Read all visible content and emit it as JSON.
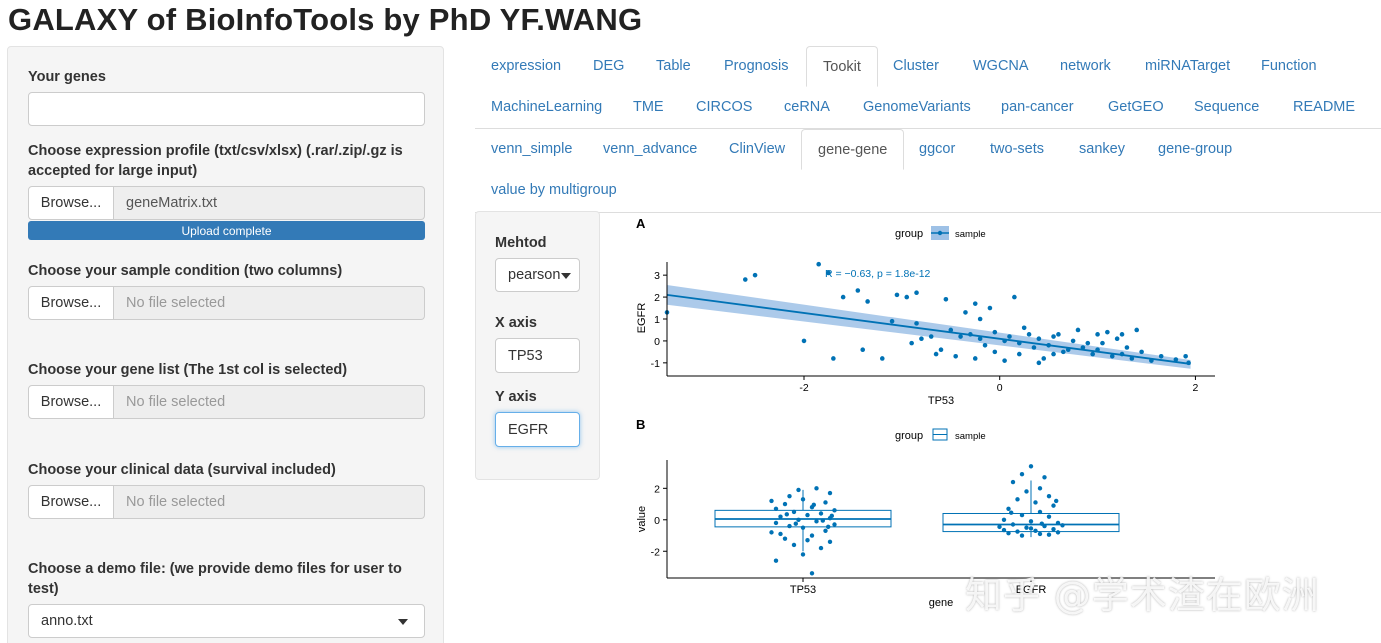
{
  "app_title": "GALAXY of BioInfoTools by PhD YF.WANG",
  "sidebar": {
    "genes_label": "Your genes",
    "genes_value": "",
    "expr_label": "Choose expression profile (txt/csv/xlsx) (.rar/.zip/.gz is accepted for large input)",
    "expr_file": "geneMatrix.txt",
    "upload_status": "Upload complete",
    "sample_label": "Choose your sample condition (two columns)",
    "genelist_label": "Choose your gene list (The 1st col is selected)",
    "clinical_label": "Choose your clinical data (survival included)",
    "browse_label": "Browse...",
    "no_file": "No file selected",
    "demo_label": "Choose a demo file: (we provide demo files for user to test)",
    "demo_value": "anno.txt"
  },
  "tabs_top": [
    "expression",
    "DEG",
    "Table",
    "Prognosis",
    "Tookit",
    "Cluster",
    "WGCNA",
    "network",
    "miRNATarget",
    "Function",
    "MachineLearning",
    "TME",
    "CIRCOS",
    "ceRNA",
    "GenomeVariants",
    "pan-cancer",
    "GetGEO",
    "Sequence",
    "README"
  ],
  "tabs_sub": [
    "venn_simple",
    "venn_advance",
    "ClinView",
    "gene-gene",
    "ggcor",
    "two-sets",
    "sankey",
    "gene-group",
    "value by multigroup"
  ],
  "panel": {
    "method_label": "Mehtod",
    "method_value": "pearson",
    "x_label": "X axis",
    "x_value": "TP53",
    "y_label": "Y axis",
    "y_value": "EGFR"
  },
  "watermark": "知乎 @学术渣在欧洲",
  "colors": {
    "accent": "#337ab7",
    "plot_blue": "#0072B5",
    "band": "#9EC1E6"
  },
  "chart_data": [
    {
      "type": "scatter",
      "panel_tag": "A",
      "legend_title": "group",
      "legend_entry": "sample",
      "legend_position": "top",
      "annotation": "R = −0.63, p = 1.8e-12",
      "xlabel": "TP53",
      "ylabel": "EGFR",
      "xlim": [
        -3.4,
        2.2
      ],
      "ylim": [
        -1.6,
        3.6
      ],
      "xticks": [
        -2,
        0,
        2
      ],
      "yticks": [
        -1,
        0,
        1,
        2,
        3
      ],
      "regression": {
        "x": [
          -3.4,
          1.95
        ],
        "y": [
          2.1,
          -1.05
        ]
      },
      "points": [
        [
          -3.4,
          1.3
        ],
        [
          -2.6,
          2.8
        ],
        [
          -2.5,
          3.0
        ],
        [
          -1.85,
          3.5
        ],
        [
          -1.75,
          3.1
        ],
        [
          -1.45,
          2.3
        ],
        [
          -1.6,
          2.0
        ],
        [
          -1.35,
          1.8
        ],
        [
          -2.0,
          0.0
        ],
        [
          -1.7,
          -0.8
        ],
        [
          -1.4,
          -0.4
        ],
        [
          -1.05,
          2.1
        ],
        [
          -0.95,
          2.0
        ],
        [
          -0.85,
          2.2
        ],
        [
          -0.55,
          1.9
        ],
        [
          -0.35,
          1.3
        ],
        [
          -0.25,
          1.7
        ],
        [
          -0.2,
          1.0
        ],
        [
          -0.1,
          1.5
        ],
        [
          0.15,
          2.0
        ],
        [
          -1.1,
          0.9
        ],
        [
          -0.85,
          0.8
        ],
        [
          -0.7,
          0.2
        ],
        [
          -0.5,
          0.5
        ],
        [
          -0.4,
          0.2
        ],
        [
          -0.3,
          0.3
        ],
        [
          -0.2,
          0.1
        ],
        [
          -0.15,
          -0.2
        ],
        [
          -0.05,
          0.4
        ],
        [
          0.05,
          0.0
        ],
        [
          0.1,
          0.2
        ],
        [
          0.2,
          -0.1
        ],
        [
          0.3,
          0.3
        ],
        [
          0.4,
          0.1
        ],
        [
          0.5,
          -0.2
        ],
        [
          0.55,
          0.2
        ],
        [
          0.65,
          -0.5
        ],
        [
          0.75,
          0.0
        ],
        [
          0.85,
          -0.3
        ],
        [
          0.95,
          -0.6
        ],
        [
          1.05,
          -0.1
        ],
        [
          1.15,
          -0.7
        ],
        [
          1.25,
          0.3
        ],
        [
          1.35,
          -0.8
        ],
        [
          1.45,
          -0.5
        ],
        [
          1.55,
          -0.9
        ],
        [
          1.65,
          -0.7
        ],
        [
          1.8,
          -0.85
        ],
        [
          1.9,
          -0.7
        ],
        [
          1.93,
          -1.0
        ],
        [
          -1.2,
          -0.8
        ],
        [
          -0.9,
          -0.1
        ],
        [
          -0.6,
          -0.4
        ],
        [
          -0.45,
          -0.7
        ],
        [
          -0.25,
          -0.8
        ],
        [
          -0.05,
          -0.5
        ],
        [
          0.05,
          -0.9
        ],
        [
          0.2,
          -0.6
        ],
        [
          0.35,
          -0.3
        ],
        [
          0.45,
          -0.8
        ],
        [
          0.6,
          0.3
        ],
        [
          0.7,
          -0.4
        ],
        [
          0.8,
          0.5
        ],
        [
          0.9,
          -0.1
        ],
        [
          1.0,
          -0.4
        ],
        [
          1.1,
          0.4
        ],
        [
          1.2,
          0.1
        ],
        [
          1.3,
          -0.3
        ],
        [
          -0.8,
          0.1
        ],
        [
          -0.65,
          -0.6
        ],
        [
          0.25,
          0.6
        ],
        [
          0.4,
          -1.0
        ],
        [
          0.55,
          -0.6
        ],
        [
          1.0,
          0.3
        ],
        [
          1.25,
          -0.6
        ],
        [
          1.4,
          0.5
        ]
      ]
    },
    {
      "type": "box",
      "panel_tag": "B",
      "legend_title": "group",
      "legend_entry": "sample",
      "legend_position": "top",
      "xlabel": "gene",
      "ylabel": "value",
      "categories": [
        "TP53",
        "EGFR"
      ],
      "ylim": [
        -3.7,
        3.8
      ],
      "yticks": [
        -2,
        0,
        2
      ],
      "boxes": [
        {
          "q1": -0.45,
          "median": 0.05,
          "q3": 0.6,
          "min": -2.0,
          "max": 1.9
        },
        {
          "q1": -0.75,
          "median": -0.3,
          "q3": 0.4,
          "min": -1.1,
          "max": 2.5
        }
      ],
      "points": [
        [
          [
            0.1,
            -3.4
          ],
          [
            -0.3,
            -2.6
          ],
          [
            0.0,
            -2.2
          ],
          [
            0.2,
            -1.8
          ],
          [
            -0.1,
            -1.6
          ],
          [
            0.3,
            -1.4
          ],
          [
            -0.2,
            -1.2
          ],
          [
            0.1,
            -1.0
          ],
          [
            -0.35,
            -0.8
          ],
          [
            0.25,
            -0.7
          ],
          [
            0.0,
            -0.5
          ],
          [
            -0.15,
            -0.4
          ],
          [
            0.35,
            -0.3
          ],
          [
            -0.3,
            -0.2
          ],
          [
            0.15,
            -0.1
          ],
          [
            -0.05,
            0.0
          ],
          [
            0.3,
            0.1
          ],
          [
            -0.25,
            0.2
          ],
          [
            0.05,
            0.3
          ],
          [
            0.2,
            0.4
          ],
          [
            -0.1,
            0.5
          ],
          [
            0.35,
            0.6
          ],
          [
            -0.3,
            0.7
          ],
          [
            0.1,
            0.8
          ],
          [
            -0.2,
            1.0
          ],
          [
            0.25,
            1.1
          ],
          [
            0.0,
            1.3
          ],
          [
            -0.15,
            1.5
          ],
          [
            0.3,
            1.7
          ],
          [
            -0.05,
            1.9
          ],
          [
            0.15,
            2.0
          ],
          [
            -0.25,
            -0.9
          ],
          [
            0.05,
            -1.3
          ],
          [
            0.28,
            -0.45
          ],
          [
            -0.18,
            0.35
          ],
          [
            0.12,
            0.95
          ],
          [
            -0.35,
            1.2
          ],
          [
            0.22,
            -0.05
          ],
          [
            -0.08,
            -0.25
          ],
          [
            0.32,
            0.25
          ]
        ],
        [
          [
            0.0,
            3.4
          ],
          [
            -0.1,
            2.9
          ],
          [
            0.15,
            2.7
          ],
          [
            -0.2,
            2.4
          ],
          [
            0.1,
            2.0
          ],
          [
            -0.05,
            1.8
          ],
          [
            0.2,
            1.5
          ],
          [
            -0.15,
            1.3
          ],
          [
            0.05,
            1.1
          ],
          [
            0.25,
            0.9
          ],
          [
            -0.25,
            0.7
          ],
          [
            0.1,
            0.5
          ],
          [
            -0.1,
            0.3
          ],
          [
            0.2,
            0.2
          ],
          [
            -0.3,
            0.0
          ],
          [
            0.0,
            -0.1
          ],
          [
            0.3,
            -0.2
          ],
          [
            -0.2,
            -0.3
          ],
          [
            0.15,
            -0.4
          ],
          [
            -0.05,
            -0.5
          ],
          [
            0.25,
            -0.6
          ],
          [
            -0.3,
            -0.65
          ],
          [
            0.05,
            -0.7
          ],
          [
            -0.15,
            -0.75
          ],
          [
            0.3,
            -0.8
          ],
          [
            -0.25,
            -0.85
          ],
          [
            0.1,
            -0.9
          ],
          [
            0.2,
            -0.95
          ],
          [
            -0.1,
            -1.0
          ],
          [
            0.0,
            -0.55
          ],
          [
            -0.35,
            -0.45
          ],
          [
            0.35,
            -0.35
          ],
          [
            0.12,
            -0.25
          ],
          [
            -0.22,
            0.45
          ],
          [
            0.28,
            1.2
          ]
        ]
      ]
    }
  ]
}
